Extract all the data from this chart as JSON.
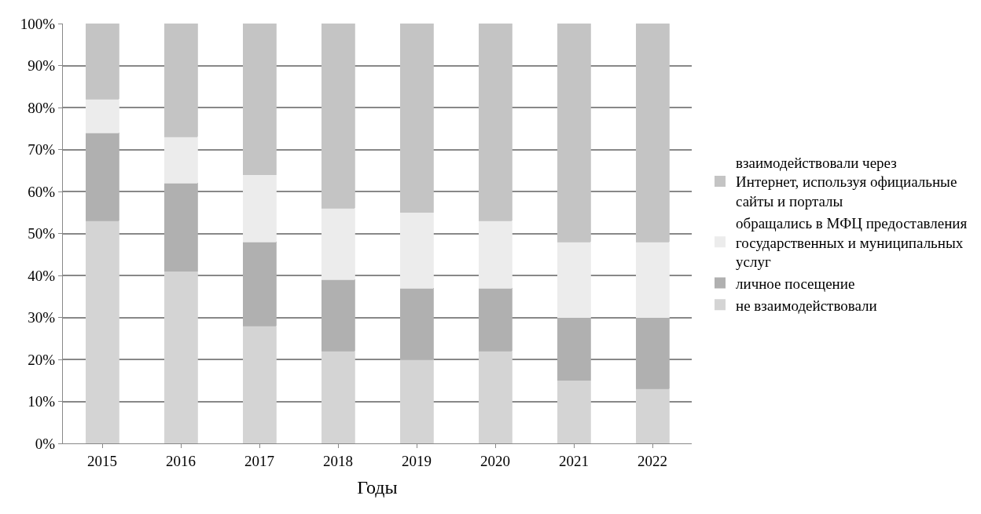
{
  "chart_data": {
    "type": "bar",
    "stacked": true,
    "xlabel": "Годы",
    "categories": [
      "2015",
      "2016",
      "2017",
      "2018",
      "2019",
      "2020",
      "2021",
      "2022"
    ],
    "series": [
      {
        "name": "не взаимодействовали",
        "color": "#d4d4d4",
        "values": [
          53,
          41,
          28,
          22,
          20,
          22,
          15,
          13
        ]
      },
      {
        "name": "личное посещение",
        "color": "#b0b0b0",
        "values": [
          21,
          21,
          20,
          17,
          17,
          15,
          15,
          17
        ]
      },
      {
        "name": "обращались в МФЦ предоставления государственных и муниципальных услуг",
        "color": "#ececec",
        "values": [
          8,
          11,
          16,
          17,
          18,
          16,
          18,
          18
        ]
      },
      {
        "name": "взаимодействовали через Интернет, используя официальные сайты и порталы",
        "color": "#c4c4c4",
        "values": [
          18,
          27,
          36,
          44,
          45,
          47,
          52,
          52
        ]
      }
    ],
    "ylim": [
      0,
      100
    ],
    "yticks": [
      {
        "value": 0,
        "label": "0%"
      },
      {
        "value": 10,
        "label": "10%"
      },
      {
        "value": 20,
        "label": "20%"
      },
      {
        "value": 30,
        "label": "30%"
      },
      {
        "value": 40,
        "label": "40%"
      },
      {
        "value": 50,
        "label": "50%"
      },
      {
        "value": 60,
        "label": "60%"
      },
      {
        "value": 70,
        "label": "70%"
      },
      {
        "value": 80,
        "label": "80%"
      },
      {
        "value": 90,
        "label": "90%"
      },
      {
        "value": 100,
        "label": "100%"
      }
    ],
    "grid": "y",
    "legend": "right"
  }
}
